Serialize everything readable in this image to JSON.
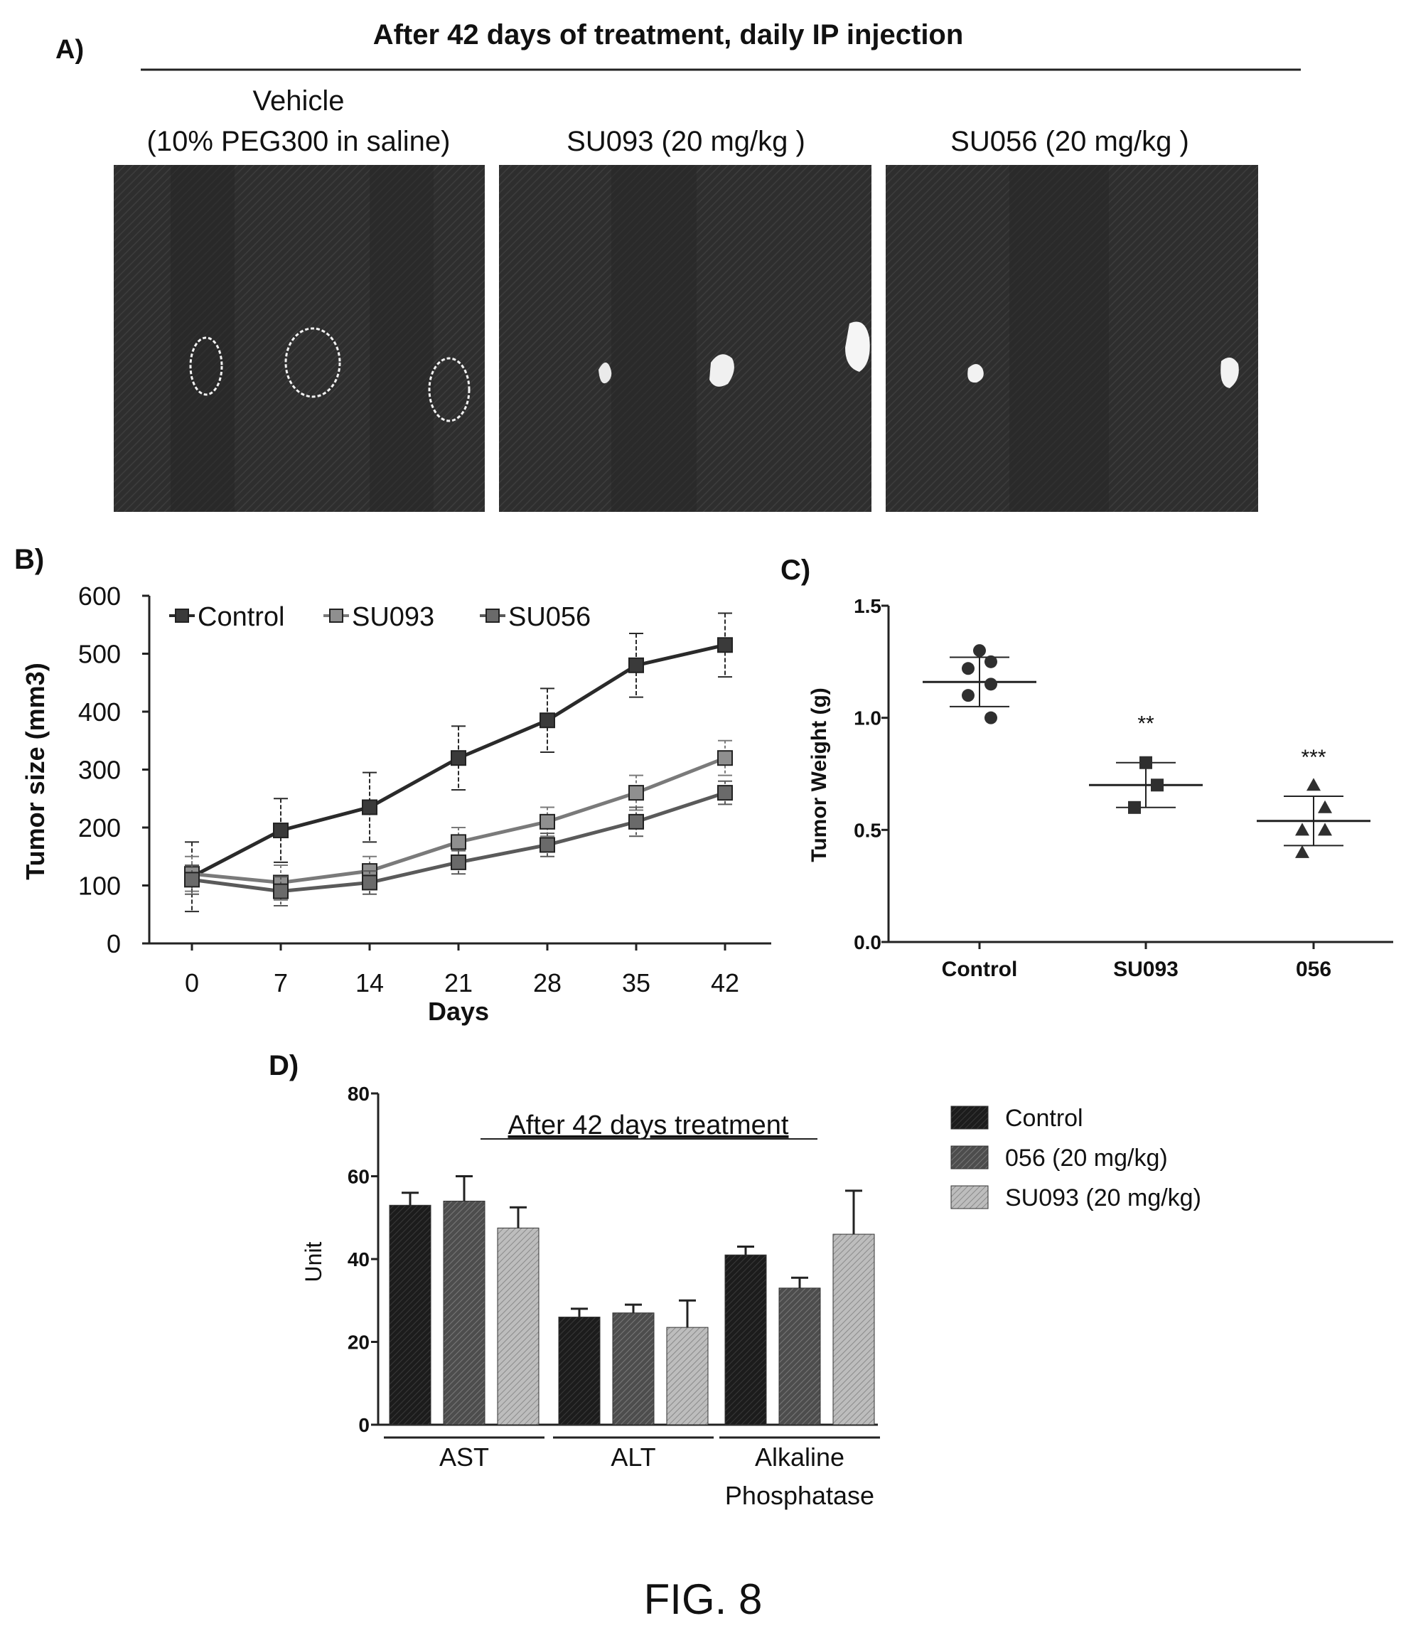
{
  "figure_label": "FIG. 8",
  "colors": {
    "ink": "#222222",
    "control_bar": "#1c1c1c",
    "su056_bar": "#4d4d4d",
    "su093_bar": "#a6a6a6",
    "photo_bg": "#2b2b2b",
    "tumor_outline": "#f2f2f2"
  },
  "panel_a": {
    "label": "A)",
    "title": "After 42 days of treatment, daily IP injection",
    "groups": [
      {
        "line1": "Vehicle",
        "line2": "(10% PEG300 in saline)"
      },
      {
        "line1": "",
        "line2": "SU093 (20 mg/kg )"
      },
      {
        "line1": "",
        "line2": "SU056 (20 mg/kg )"
      }
    ]
  },
  "panel_b": {
    "label": "B)",
    "ylabel": "Tumor size (mm3)",
    "xlabel": "Days",
    "yticks": [
      "0",
      "100",
      "200",
      "300",
      "400",
      "500",
      "600"
    ],
    "xticks": [
      "0",
      "7",
      "14",
      "21",
      "28",
      "35",
      "42"
    ],
    "legend": [
      "Control",
      "SU093",
      "SU056"
    ]
  },
  "panel_c": {
    "label": "C)",
    "ylabel": "Tumor Weight (g)",
    "yticks": [
      "0.0",
      "0.5",
      "1.0",
      "1.5"
    ],
    "categories": [
      "Control",
      "SU093",
      "056"
    ],
    "significance": [
      "",
      "**",
      "***"
    ]
  },
  "panel_d": {
    "label": "D)",
    "title": "After 42 days treatment",
    "ylabel": "Unit",
    "yticks": [
      "0",
      "20",
      "40",
      "60",
      "80"
    ],
    "group_labels": [
      {
        "line1": "AST",
        "line2": ""
      },
      {
        "line1": "ALT",
        "line2": ""
      },
      {
        "line1": "Alkaline",
        "line2": "Phosphatase"
      }
    ],
    "legend": [
      "Control",
      "056 (20 mg/kg)",
      "SU093 (20 mg/kg)"
    ]
  },
  "chart_data": [
    {
      "panel": "B",
      "type": "line",
      "xlabel": "Days",
      "ylabel": "Tumor size (mm3)",
      "x": [
        0,
        7,
        14,
        21,
        28,
        35,
        42
      ],
      "xlim": [
        0,
        42
      ],
      "ylim": [
        0,
        600
      ],
      "legend_placement": "top-left",
      "series": [
        {
          "name": "Control",
          "values": [
            115,
            195,
            235,
            320,
            385,
            480,
            515
          ],
          "error": [
            60,
            55,
            60,
            55,
            55,
            55,
            55
          ]
        },
        {
          "name": "SU093",
          "values": [
            120,
            105,
            125,
            175,
            210,
            260,
            320
          ],
          "error": [
            30,
            30,
            25,
            25,
            25,
            30,
            30
          ]
        },
        {
          "name": "SU056",
          "values": [
            110,
            90,
            105,
            140,
            170,
            210,
            260
          ],
          "error": [
            25,
            25,
            20,
            20,
            20,
            25,
            20
          ]
        }
      ]
    },
    {
      "panel": "C",
      "type": "scatter",
      "ylabel": "Tumor Weight (g)",
      "categories": [
        "Control",
        "SU093",
        "056"
      ],
      "ylim": [
        0.0,
        1.5
      ],
      "groups": [
        {
          "category": "Control",
          "points": [
            1.3,
            1.25,
            1.22,
            1.15,
            1.1,
            1.0
          ],
          "mean": 1.16,
          "sd": 0.11
        },
        {
          "category": "SU093",
          "points": [
            0.8,
            0.7,
            0.6
          ],
          "mean": 0.7,
          "sd": 0.1
        },
        {
          "category": "056",
          "points": [
            0.7,
            0.6,
            0.5,
            0.5,
            0.4
          ],
          "mean": 0.54,
          "sd": 0.11,
          "significance": "***"
        }
      ]
    },
    {
      "panel": "D",
      "type": "bar",
      "title": "After 42 days treatment",
      "ylabel": "Unit",
      "categories": [
        "AST",
        "ALT",
        "Alkaline Phosphatase"
      ],
      "ylim": [
        0,
        80
      ],
      "legend_placement": "right",
      "series": [
        {
          "name": "Control",
          "values": [
            53,
            26,
            41
          ],
          "error": [
            3,
            2,
            2
          ]
        },
        {
          "name": "056 (20 mg/kg)",
          "values": [
            54,
            27,
            33
          ],
          "error": [
            6,
            2,
            2.5
          ]
        },
        {
          "name": "SU093 (20 mg/kg)",
          "values": [
            47.5,
            23.5,
            46
          ],
          "error": [
            5,
            6.5,
            10.5
          ]
        }
      ]
    }
  ]
}
